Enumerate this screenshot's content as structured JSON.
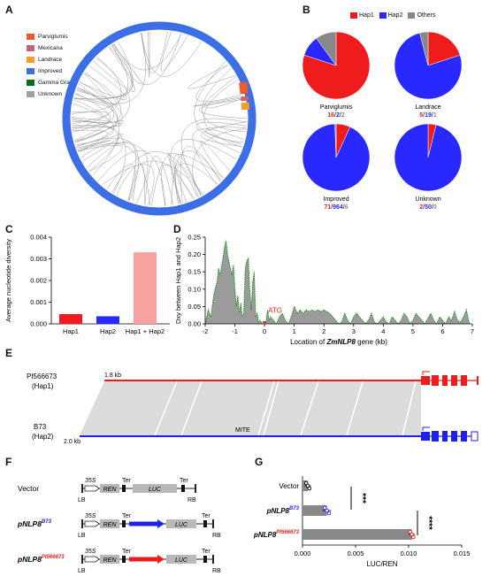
{
  "panels": {
    "A": "A",
    "B": "B",
    "C": "C",
    "D": "D",
    "E": "E",
    "F": "F",
    "G": "G"
  },
  "panelA": {
    "legend": [
      {
        "label": "Parviglumis",
        "color": "#f05a28"
      },
      {
        "label": "Mexicana",
        "color": "#c86478"
      },
      {
        "label": "Landrace",
        "color": "#f0a028"
      },
      {
        "label": "Improved",
        "color": "#3c6ee6"
      },
      {
        "label": "Gamma Grass",
        "color": "#0a6e1e"
      },
      {
        "label": "Unknown",
        "color": "#a0a0a0"
      }
    ]
  },
  "panelB": {
    "legend": [
      {
        "label": "Hap1",
        "color": "#ee1c1c"
      },
      {
        "label": "Hap2",
        "color": "#2828ff"
      },
      {
        "label": "Others",
        "color": "#888888"
      }
    ],
    "pies": [
      {
        "name": "Parviglumis",
        "hap1": "16",
        "hap2": "2",
        "others": "2",
        "values": [
          16,
          2,
          2
        ]
      },
      {
        "name": "Landrace",
        "hap1": "5",
        "hap2": "19",
        "others": "1",
        "values": [
          5,
          19,
          1
        ]
      },
      {
        "name": "Improved",
        "hap1": "71",
        "hap2": "964",
        "others": "6",
        "values": [
          71,
          964,
          6
        ]
      },
      {
        "name": "Unknown",
        "hap1": "2",
        "hap2": "50",
        "others": "0",
        "values": [
          2,
          50,
          0
        ]
      }
    ],
    "sep": "/"
  },
  "chart_data": [
    {
      "type": "bar",
      "panel": "C",
      "ylabel": "Average nucleotide diversity",
      "categories": [
        "Hap1",
        "Hap2",
        "Hap1 + Hap2"
      ],
      "values": [
        0.00045,
        0.00035,
        0.0033
      ],
      "colors": [
        "#ee1c1c",
        "#2828ff",
        "#f9a0a0"
      ],
      "ylim": [
        0,
        0.004
      ],
      "yticks": [
        "0.000",
        "0.001",
        "0.002",
        "0.003",
        "0.004"
      ]
    },
    {
      "type": "area",
      "panel": "D",
      "ylabel": "Dxy between Hap1 and Hap2",
      "xlabel_prefix": "Location of ",
      "xlabel_gene": "ZmNLP8",
      "xlabel_suffix": " gene (kb)",
      "xticks": [
        "-2",
        "-1",
        "0",
        "1",
        "2",
        "3",
        "4",
        "5",
        "6",
        "7"
      ],
      "yticks": [
        "0.00",
        "0.05",
        "0.10",
        "0.15",
        "0.20",
        "0.25"
      ],
      "ylim": [
        0,
        0.25
      ],
      "xlim": [
        -2,
        7
      ],
      "annotation": "ATG",
      "x": [
        -2,
        -1.9,
        -1.8,
        -1.75,
        -1.7,
        -1.6,
        -1.55,
        -1.5,
        -1.4,
        -1.35,
        -1.3,
        -1.25,
        -1.2,
        -1.1,
        -1.05,
        -1.0,
        -0.95,
        -0.9,
        -0.85,
        -0.8,
        -0.75,
        -0.7,
        -0.65,
        -0.6,
        -0.55,
        -0.5,
        -0.45,
        -0.4,
        -0.35,
        -0.3,
        -0.25,
        -0.2,
        -0.15,
        -0.1,
        -0.05,
        0,
        0.05,
        0.1,
        0.15,
        0.2,
        0.3,
        0.4,
        0.5,
        0.6,
        0.7,
        0.8,
        0.9,
        1.0,
        1.1,
        1.2,
        1.3,
        1.4,
        1.5,
        1.6,
        1.7,
        1.8,
        1.9,
        2.0,
        2.1,
        2.2,
        2.3,
        2.4,
        2.5,
        2.6,
        2.7,
        2.8,
        2.9,
        3.0,
        3.1,
        3.2,
        3.3,
        3.4,
        3.5,
        3.6,
        3.7,
        3.8,
        3.9,
        4.0,
        4.1,
        4.2,
        4.3,
        4.4,
        4.5,
        4.6,
        4.7,
        4.8,
        4.9,
        5.0,
        5.1,
        5.2,
        5.3,
        5.4,
        5.5,
        5.6,
        5.7,
        5.8,
        5.9,
        6.0,
        6.1,
        6.2,
        6.3,
        6.4,
        6.5,
        6.6,
        6.7,
        6.8,
        6.9
      ],
      "y": [
        0.0,
        0.04,
        0.02,
        0.06,
        0.09,
        0.12,
        0.16,
        0.14,
        0.19,
        0.22,
        0.24,
        0.2,
        0.18,
        0.14,
        0.17,
        0.1,
        0.05,
        0.08,
        0.03,
        0.06,
        0.02,
        0.03,
        0.16,
        0.18,
        0.19,
        0.1,
        0.04,
        0.12,
        0.15,
        0.02,
        0.03,
        0.005,
        0.01,
        0.003,
        0.0,
        0.0,
        0.005,
        0.04,
        0.01,
        0.02,
        0.01,
        0.0,
        0.02,
        0.03,
        0.01,
        0.0,
        0.02,
        0.05,
        0.03,
        0.04,
        0.03,
        0.04,
        0.035,
        0.04,
        0.035,
        0.04,
        0.035,
        0.04,
        0.035,
        0.03,
        0.02,
        0.01,
        0.0,
        0.005,
        0.03,
        0.01,
        0.0,
        0.02,
        0.03,
        0.02,
        0.01,
        0.0,
        0.01,
        0.03,
        0.005,
        0.0,
        0.01,
        0.02,
        0.005,
        0.0,
        0.02,
        0.01,
        0.0,
        0.01,
        0.03,
        0.02,
        0.0,
        0.01,
        0.03,
        0.02,
        0.01,
        0.0,
        0.015,
        0.03,
        0.01,
        0.0,
        0.02,
        0.01,
        0.0,
        0.02,
        0.01,
        0.035,
        0.01,
        0.005,
        0.02,
        0.04,
        0.0
      ]
    },
    {
      "type": "bar",
      "panel": "G",
      "orientation": "horizontal",
      "xlabel": "LUC/REN",
      "categories": [
        "Vector",
        "pNLP8",
        "pNLP8"
      ],
      "superscripts": [
        "",
        "B73",
        "PI566673"
      ],
      "values": [
        0.0005,
        0.0023,
        0.0103
      ],
      "errors": [
        0.0003,
        0.0004,
        0.0003
      ],
      "colors": [
        "#888888",
        "#888888",
        "#888888"
      ],
      "point_colors": [
        "#000000",
        "#2828ff",
        "#ee1c1c"
      ],
      "xlim": [
        0,
        0.015
      ],
      "xticks": [
        "0.000",
        "0.005",
        "0.010",
        "0.015"
      ],
      "sig": "***",
      "sig2": "****"
    }
  ],
  "panelE": {
    "hap1_name": "PI566673",
    "hap1_sub": "(Hap1)",
    "hap1_len": "1.8 kb",
    "hap2_name": "B73",
    "hap2_sub": "(Hap2)",
    "hap2_len": "2.0 kb",
    "mite": "MITE"
  },
  "panelF": {
    "rows": [
      {
        "name": "Vector",
        "sup": ""
      },
      {
        "name": "pNLP8",
        "sup": "B73"
      },
      {
        "name": "pNLP8",
        "sup": "PI566673"
      }
    ],
    "p35s": "35S",
    "ren": "REN",
    "luc": "LUC",
    "ter": "Ter",
    "lb": "LB",
    "rb": "RB"
  }
}
